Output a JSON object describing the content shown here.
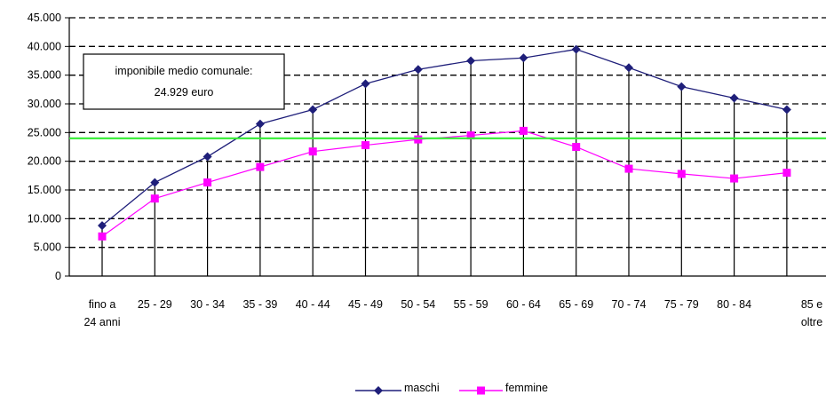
{
  "chart_data": {
    "type": "line",
    "title": "",
    "xlabel": "",
    "ylabel": "",
    "categories": [
      [
        "fino a",
        "24 anni"
      ],
      [
        "25 - 29"
      ],
      [
        "30 - 34"
      ],
      [
        "35 - 39"
      ],
      [
        "40 - 44"
      ],
      [
        "45 - 49"
      ],
      [
        "50 - 54"
      ],
      [
        "55 - 59"
      ],
      [
        "60 - 64"
      ],
      [
        "65 - 69"
      ],
      [
        "70 - 74"
      ],
      [
        "75 - 79"
      ],
      [
        "80 - 84"
      ],
      [
        "85 e",
        "oltre"
      ]
    ],
    "yticks": [
      "0",
      "5.000",
      "10.000",
      "15.000",
      "20.000",
      "25.000",
      "30.000",
      "35.000",
      "40.000",
      "45.000"
    ],
    "ylim": [
      0,
      45000
    ],
    "grid": "horizontal dashed",
    "series": [
      {
        "name": "maschi",
        "color": "#1f1f7a",
        "marker": "diamond",
        "values": [
          8800,
          16300,
          20800,
          26500,
          29000,
          33500,
          36000,
          37500,
          38000,
          39500,
          36300,
          33000,
          31000,
          29000
        ]
      },
      {
        "name": "femmine",
        "color": "#ff00ff",
        "marker": "square",
        "values": [
          6900,
          13500,
          16300,
          19000,
          21700,
          22800,
          23800,
          24500,
          25300,
          22500,
          18700,
          17800,
          17000,
          18000
        ]
      }
    ],
    "reference_line": {
      "value": 24000,
      "color": "#33ee33"
    },
    "annotation": {
      "lines": [
        "imponibile medio comunale:",
        "24.929 euro"
      ]
    },
    "legend": "bottom"
  }
}
